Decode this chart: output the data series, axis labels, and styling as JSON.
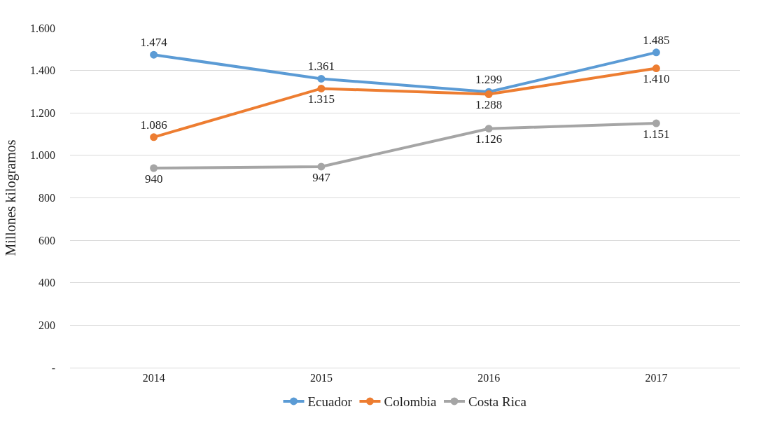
{
  "chart_data": {
    "type": "line",
    "ylabel": "Millones kilogramos",
    "categories": [
      "2014",
      "2015",
      "2016",
      "2017"
    ],
    "series": [
      {
        "name": "Ecuador",
        "color": "#5b9bd5",
        "values": [
          1474,
          1361,
          1299,
          1485
        ],
        "value_labels": [
          "1.474",
          "1.361",
          "1.299",
          "1.485"
        ]
      },
      {
        "name": "Colombia",
        "color": "#ed7d31",
        "values": [
          1086,
          1315,
          1288,
          1410
        ],
        "value_labels": [
          "1.086",
          "1.315",
          "1.288",
          "1.410"
        ]
      },
      {
        "name": "Costa Rica",
        "color": "#a5a5a5",
        "values": [
          940,
          947,
          1126,
          1151
        ],
        "value_labels": [
          "940",
          "947",
          "1.126",
          "1.151"
        ]
      }
    ],
    "ylim": [
      0,
      1600
    ],
    "yticks": [
      {
        "value": 0,
        "label": "-"
      },
      200,
      400,
      600,
      800,
      {
        "value": 1000,
        "label": "1.000"
      },
      {
        "value": 1200,
        "label": "1.200"
      },
      {
        "value": 1400,
        "label": "1.400"
      },
      {
        "value": 1600,
        "label": "1.600"
      }
    ],
    "grid": "y",
    "legend": "bottom",
    "marker": "circle",
    "line_style": "solid"
  }
}
